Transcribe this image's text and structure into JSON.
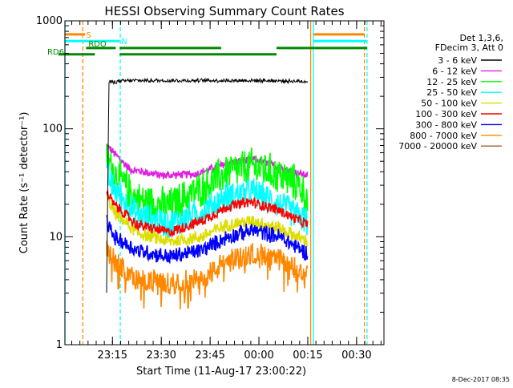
{
  "chart_data": {
    "type": "line",
    "title": "HESSI Observing Summary Count Rates",
    "xlabel": "Start Time (11-Aug-17 23:00:22)",
    "ylabel": "Count Rate (s⁻¹ detector⁻¹)",
    "y_scale": "log",
    "ylim": [
      1,
      1000
    ],
    "y_ticks": [
      {
        "value": 1,
        "label": "1"
      },
      {
        "value": 10,
        "label": "10"
      },
      {
        "value": 100,
        "label": "100"
      },
      {
        "value": 1000,
        "label": "1000"
      }
    ],
    "x_unit": "minutes after 23:00:22",
    "xlim": [
      0,
      98
    ],
    "x_ticks": [
      {
        "value": 14.6,
        "label": "23:15"
      },
      {
        "value": 29.6,
        "label": "23:30"
      },
      {
        "value": 44.6,
        "label": "23:45"
      },
      {
        "value": 59.6,
        "label": "00:00"
      },
      {
        "value": 74.6,
        "label": "00:15"
      },
      {
        "value": 89.6,
        "label": "00:30"
      }
    ],
    "legend": {
      "placement": "right",
      "header": [
        "Det 1,3,6,",
        "FDecim 3, Att 0"
      ]
    },
    "data_interval": [
      12.8,
      74.5
    ],
    "series": [
      {
        "name": "3 - 6 keV",
        "color": "#000000",
        "profile": [
          [
            12.8,
            3
          ],
          [
            13.5,
            270
          ],
          [
            20,
            280
          ],
          [
            40,
            280
          ],
          [
            60,
            280
          ],
          [
            74.5,
            275
          ]
        ],
        "noise": 0.03
      },
      {
        "name": "6 - 12 keV",
        "color": "#e020e0",
        "profile": [
          [
            12.8,
            70
          ],
          [
            15,
            60
          ],
          [
            20,
            42
          ],
          [
            30,
            37
          ],
          [
            40,
            38
          ],
          [
            50,
            48
          ],
          [
            58,
            52
          ],
          [
            66,
            44
          ],
          [
            70,
            40
          ],
          [
            74.5,
            37
          ]
        ],
        "noise": 0.06
      },
      {
        "name": "12 - 25 keV",
        "color": "#00ff00",
        "profile": [
          [
            12.8,
            55
          ],
          [
            15,
            40
          ],
          [
            22,
            22
          ],
          [
            32,
            19
          ],
          [
            42,
            28
          ],
          [
            50,
            40
          ],
          [
            58,
            45
          ],
          [
            66,
            37
          ],
          [
            72,
            30
          ],
          [
            74.5,
            22
          ]
        ],
        "noise": 0.28
      },
      {
        "name": "25 - 50 keV",
        "color": "#00ffff",
        "profile": [
          [
            12.8,
            38
          ],
          [
            15,
            28
          ],
          [
            22,
            16
          ],
          [
            32,
            13
          ],
          [
            42,
            17
          ],
          [
            50,
            24
          ],
          [
            58,
            26
          ],
          [
            66,
            20
          ],
          [
            74.5,
            14
          ]
        ],
        "noise": 0.22
      },
      {
        "name": "50 - 100 keV",
        "color": "#dddd00",
        "profile": [
          [
            12.8,
            24
          ],
          [
            15,
            17
          ],
          [
            22,
            11
          ],
          [
            32,
            9
          ],
          [
            42,
            10
          ],
          [
            50,
            13
          ],
          [
            58,
            14
          ],
          [
            66,
            12
          ],
          [
            74.5,
            9
          ]
        ],
        "noise": 0.1
      },
      {
        "name": "100 - 300 keV",
        "color": "#ff0000",
        "profile": [
          [
            12.8,
            26
          ],
          [
            15,
            20
          ],
          [
            22,
            13
          ],
          [
            32,
            11
          ],
          [
            42,
            14
          ],
          [
            50,
            19
          ],
          [
            57,
            21
          ],
          [
            65,
            18
          ],
          [
            70,
            15
          ],
          [
            74.5,
            13
          ]
        ],
        "noise": 0.08
      },
      {
        "name": "300 - 800 keV",
        "color": "#0000ff",
        "profile": [
          [
            12.8,
            14
          ],
          [
            15,
            10
          ],
          [
            22,
            7.5
          ],
          [
            32,
            6.5
          ],
          [
            42,
            7.5
          ],
          [
            50,
            10
          ],
          [
            58,
            11.5
          ],
          [
            66,
            10
          ],
          [
            74.5,
            7
          ]
        ],
        "noise": 0.12
      },
      {
        "name": "800 - 7000 keV",
        "color": "#ff8800",
        "profile": [
          [
            12.8,
            8
          ],
          [
            15,
            6
          ],
          [
            22,
            4
          ],
          [
            32,
            3.7
          ],
          [
            42,
            4
          ],
          [
            50,
            6
          ],
          [
            58,
            7
          ],
          [
            66,
            6
          ],
          [
            74.5,
            4.5
          ]
        ],
        "noise": 0.18
      },
      {
        "name": "7000 - 20000 keV",
        "color": "#996633",
        "profile": [],
        "noise": 0
      }
    ],
    "markers": [
      {
        "kind": "vline",
        "x": 0,
        "color": "#00ffff",
        "dash": false
      },
      {
        "kind": "vline",
        "x": 5.5,
        "color": "#ff8800",
        "dash": true
      },
      {
        "kind": "vline",
        "x": 17,
        "color": "#00ffff",
        "dash": true
      },
      {
        "kind": "vline",
        "x": 75.5,
        "color": "#ff8800",
        "dash": false
      },
      {
        "kind": "vline",
        "x": 76.3,
        "color": "#00ffff",
        "dash": false
      },
      {
        "kind": "vline",
        "x": 92,
        "color": "#ff8800",
        "dash": true
      },
      {
        "kind": "vline",
        "x": 92.8,
        "color": "#00ffff",
        "dash": true
      }
    ],
    "flag_bars": [
      {
        "label": "S",
        "color": "#ff8800",
        "level": 750,
        "segments": [
          [
            0,
            6.2
          ],
          [
            76.4,
            92
          ]
        ]
      },
      {
        "label": "N",
        "color": "#00ffff",
        "level": 650,
        "segments": [
          [
            0,
            16.8
          ],
          [
            76.4,
            92.8
          ]
        ]
      },
      {
        "label": "RDO",
        "color": "#008800",
        "level": 560,
        "segments": [
          [
            6.5,
            15.6
          ],
          [
            16.8,
            48
          ],
          [
            65,
            92.8
          ]
        ]
      },
      {
        "label": "RD6",
        "color": "#008800",
        "level": 490,
        "segments": [
          [
            -2,
            9.2
          ],
          [
            16.8,
            65
          ]
        ]
      }
    ],
    "footer_date": "8-Dec-2017 08:35"
  }
}
